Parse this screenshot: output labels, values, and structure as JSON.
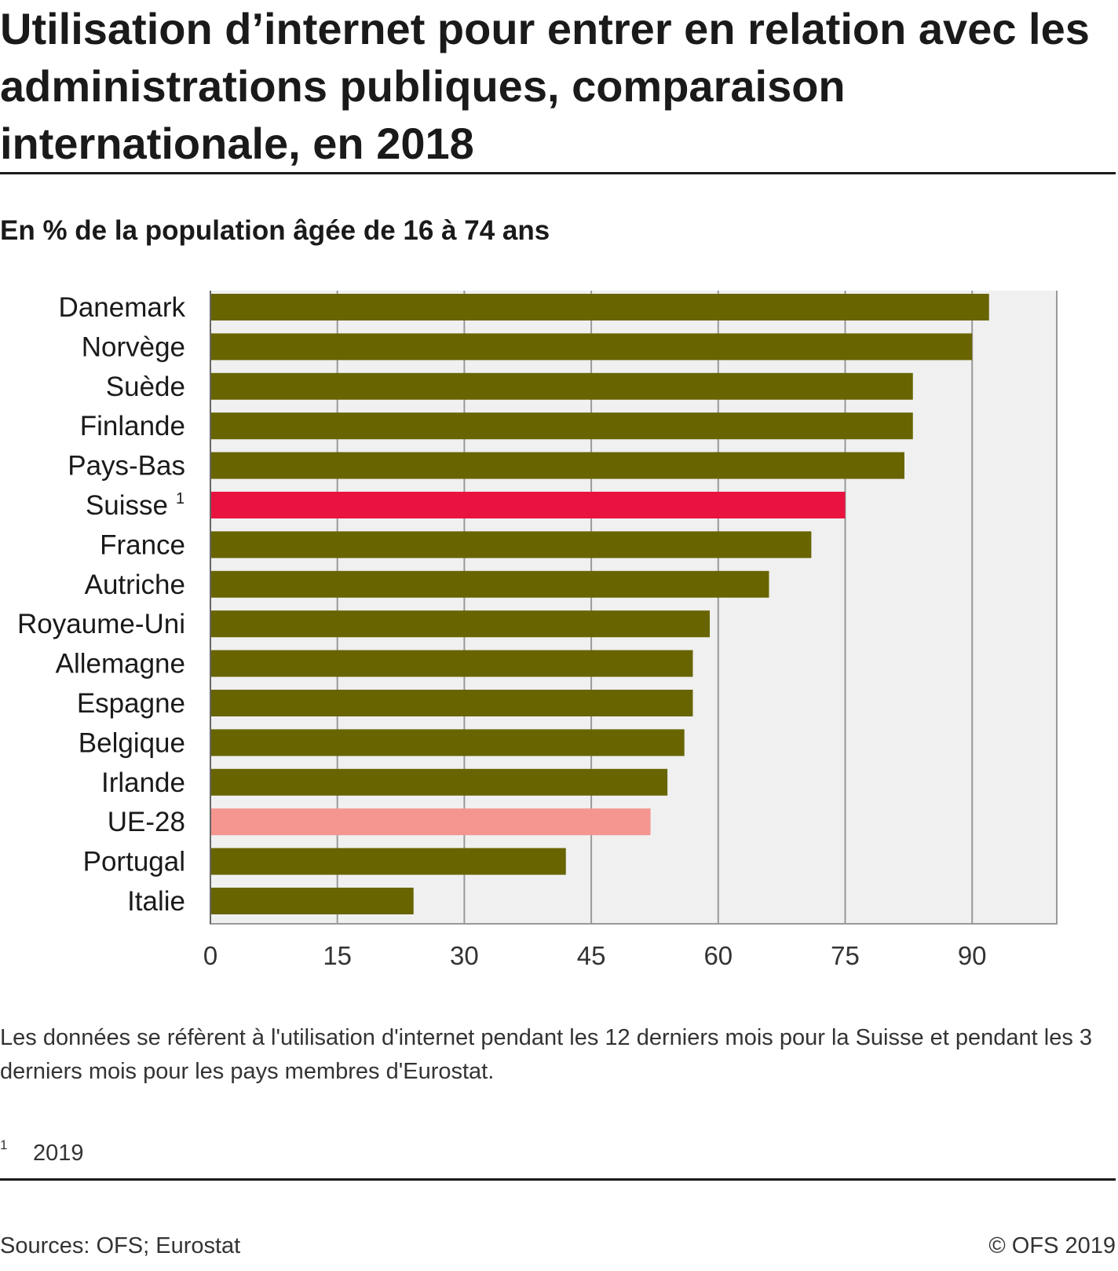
{
  "header": {
    "title": "Utilisation d’internet pour entrer en relation avec les administrations publiques, comparaison internationale, en 2018",
    "subtitle": "En % de la population âgée de 16 à 74 ans"
  },
  "colors": {
    "bar_default": "#686400",
    "bar_highlight": "#e8133f",
    "bar_eu": "#f4958f",
    "plot_background": "#f0f0f0",
    "gridline": "#999999"
  },
  "chart_data": {
    "type": "bar",
    "orientation": "horizontal",
    "title": "Utilisation d’internet pour entrer en relation avec les administrations publiques, comparaison internationale, en 2018",
    "subtitle": "En % de la population âgée de 16 à 74 ans",
    "xlabel": "",
    "ylabel": "",
    "xlim": [
      0,
      100
    ],
    "x_ticks": [
      0,
      15,
      30,
      45,
      60,
      75,
      90
    ],
    "grid": true,
    "legend": "none",
    "categories": [
      "Danemark",
      "Norvège",
      "Suède",
      "Finlande",
      "Pays-Bas",
      "Suisse",
      "France",
      "Autriche",
      "Royaume-Uni",
      "Allemagne",
      "Espagne",
      "Belgique",
      "Irlande",
      "UE-28",
      "Portugal",
      "Italie"
    ],
    "category_footnotes": [
      "",
      "",
      "",
      "",
      "",
      "1",
      "",
      "",
      "",
      "",
      "",
      "",
      "",
      "",
      "",
      ""
    ],
    "values": [
      92,
      90,
      83,
      83,
      82,
      75,
      71,
      66,
      59,
      57,
      57,
      56,
      54,
      52,
      42,
      24
    ],
    "highlight": [
      "",
      "",
      "",
      "",
      "",
      "country",
      "",
      "",
      "",
      "",
      "",
      "",
      "",
      "eu",
      "",
      ""
    ]
  },
  "notes": {
    "text": "Les données se réfèrent à l'utilisation d'internet pendant les 12 derniers mois pour la Suisse et pendant les 3 derniers mois pour les pays membres d'Eurostat.",
    "footnote_marker": "1",
    "footnote_text": "2019"
  },
  "footer": {
    "source": "Sources: OFS; Eurostat",
    "copyright": "© OFS 2019"
  }
}
